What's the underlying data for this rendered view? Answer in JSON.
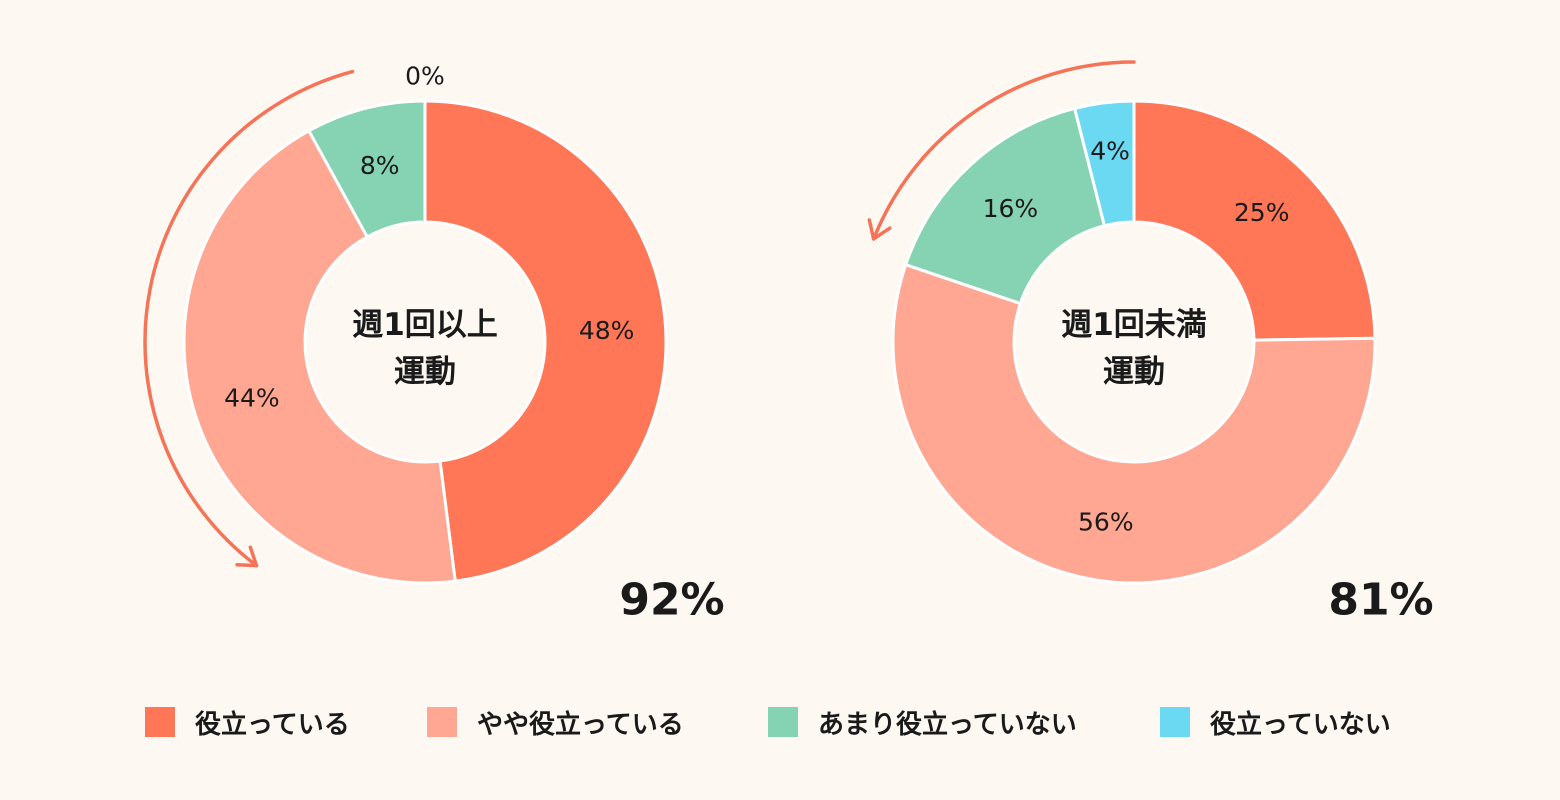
{
  "chart_data": [
    {
      "type": "pie",
      "donut": true,
      "title": "週1回以上運動",
      "title_lines": [
        "週1回以上",
        "運動"
      ],
      "categories": [
        "役立っている",
        "やや役立っている",
        "あまり役立っていない",
        "役立っていない"
      ],
      "values": [
        48,
        44,
        8,
        0
      ],
      "labels": [
        "48%",
        "44%",
        "8%",
        "0%"
      ],
      "total_label": "92%"
    },
    {
      "type": "pie",
      "donut": true,
      "title": "週1回未満運動",
      "title_lines": [
        "週1回未満",
        "運動"
      ],
      "categories": [
        "役立っている",
        "やや役立っている",
        "あまり役立っていない",
        "役立っていない"
      ],
      "values": [
        25,
        56,
        16,
        4
      ],
      "labels": [
        "25%",
        "56%",
        "16%",
        "4%"
      ],
      "total_label": "81%"
    }
  ],
  "colors": [
    "#ff7757",
    "#ffa793",
    "#86d3b3",
    "#6bd9f2"
  ],
  "arc_color": "#f57457",
  "legend": [
    {
      "label": "役立っている",
      "color": "#ff7757"
    },
    {
      "label": "やや役立っている",
      "color": "#ffa793"
    },
    {
      "label": "あまり役立っていない",
      "color": "#86d3b3"
    },
    {
      "label": "役立っていない",
      "color": "#6bd9f2"
    }
  ]
}
